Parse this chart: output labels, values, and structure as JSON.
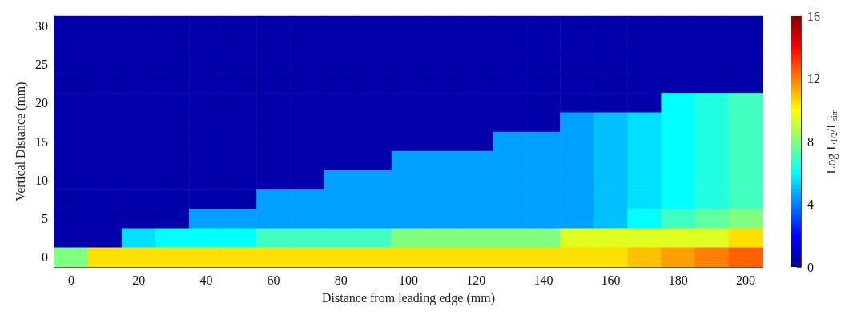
{
  "chart_data": {
    "type": "heatmap",
    "xlabel": "Distance from leading edge (mm)",
    "ylabel": "Vertical Distance (mm)",
    "clabel": "Log L$_{1/2}$/L$_{sim}$",
    "clim": [
      0,
      16
    ],
    "cticks": [
      0,
      4,
      8,
      12,
      16
    ],
    "categories": [
      "0",
      null,
      "20",
      null,
      "40",
      null,
      "60",
      null,
      "80",
      null,
      "100",
      null,
      "120",
      null,
      "140",
      null,
      "160",
      null,
      "180",
      null,
      "200"
    ],
    "y_categories": [
      "30",
      null,
      "25",
      null,
      "20",
      null,
      "15",
      null,
      "10",
      null,
      "5",
      null,
      "0"
    ],
    "cells": [
      [
        0.5,
        0.5,
        0.5,
        0.5,
        0.5,
        0.5,
        0.5,
        0.5,
        0.5,
        0.5,
        0.5,
        0.5,
        0.5,
        0.5,
        0.5,
        0.5,
        0.5,
        0.5,
        0.5,
        0.5,
        0.5
      ],
      [
        0.5,
        0.5,
        0.5,
        0.5,
        0.5,
        0.5,
        0.5,
        0.5,
        0.5,
        0.5,
        0.5,
        0.5,
        0.5,
        0.5,
        0.5,
        0.5,
        0.5,
        0.5,
        0.5,
        0.5,
        0.5
      ],
      [
        0.5,
        0.5,
        0.5,
        0.5,
        0.5,
        0.5,
        0.5,
        0.5,
        0.5,
        0.5,
        0.5,
        0.5,
        0.5,
        0.5,
        0.5,
        0.5,
        0.5,
        0.5,
        0.5,
        0.5,
        0.5
      ],
      [
        0.5,
        0.5,
        0.5,
        0.5,
        0.5,
        0.5,
        0.5,
        0.5,
        0.5,
        0.5,
        0.5,
        0.5,
        0.5,
        0.5,
        0.5,
        0.5,
        0.5,
        0.5,
        0.5,
        0.5,
        0.5
      ],
      [
        0.5,
        0.5,
        0.5,
        0.5,
        0.5,
        0.5,
        0.5,
        0.5,
        0.5,
        0.5,
        0.5,
        0.5,
        0.5,
        0.5,
        0.5,
        0.5,
        0.5,
        0.5,
        6,
        6.5,
        7
      ],
      [
        0.5,
        0.5,
        0.5,
        0.5,
        0.5,
        0.5,
        0.5,
        0.5,
        0.5,
        0.5,
        0.5,
        0.5,
        0.5,
        0.5,
        0.5,
        4.5,
        5,
        5.5,
        6,
        6.5,
        7
      ],
      [
        0.5,
        0.5,
        0.5,
        0.5,
        0.5,
        0.5,
        0.5,
        0.5,
        0.5,
        0.5,
        0.5,
        0.5,
        0.5,
        4.5,
        4.5,
        4.5,
        5,
        5.5,
        6,
        6.5,
        7
      ],
      [
        0.5,
        0.5,
        0.5,
        0.5,
        0.5,
        0.5,
        0.5,
        0.5,
        0.5,
        0.5,
        4.5,
        4.5,
        4.5,
        4.5,
        4.5,
        4.5,
        5,
        5.5,
        6,
        6.5,
        7
      ],
      [
        0.5,
        0.5,
        0.5,
        0.5,
        0.5,
        0.5,
        0.5,
        0.5,
        4.5,
        4.5,
        4.5,
        4.5,
        4.5,
        4.5,
        4.5,
        4.5,
        5,
        5.5,
        6,
        6.5,
        7
      ],
      [
        0.5,
        0.5,
        0.5,
        0.5,
        0.5,
        0.5,
        4.5,
        4.5,
        4.5,
        4.5,
        4.5,
        4.5,
        4.5,
        4.5,
        4.5,
        4.5,
        5,
        5.5,
        6,
        6.5,
        7
      ],
      [
        0.5,
        0.5,
        0.5,
        0.5,
        4.5,
        4.5,
        4.5,
        4.5,
        4.5,
        4.5,
        4.5,
        4.5,
        4.5,
        4.5,
        4.5,
        4.5,
        5,
        6,
        7,
        7.5,
        8
      ],
      [
        0.5,
        0.5,
        5.5,
        6,
        6,
        6,
        7,
        7,
        7,
        7,
        8,
        8,
        8,
        8,
        8,
        9.5,
        9.5,
        9.5,
        9.5,
        9.5,
        10.5
      ],
      [
        8,
        10.5,
        10.5,
        10.5,
        10.5,
        10.5,
        10.5,
        10.5,
        10.5,
        10.5,
        10.5,
        10.5,
        10.5,
        10.5,
        10.5,
        10.5,
        10.5,
        11,
        11.5,
        12,
        12.5
      ]
    ]
  }
}
